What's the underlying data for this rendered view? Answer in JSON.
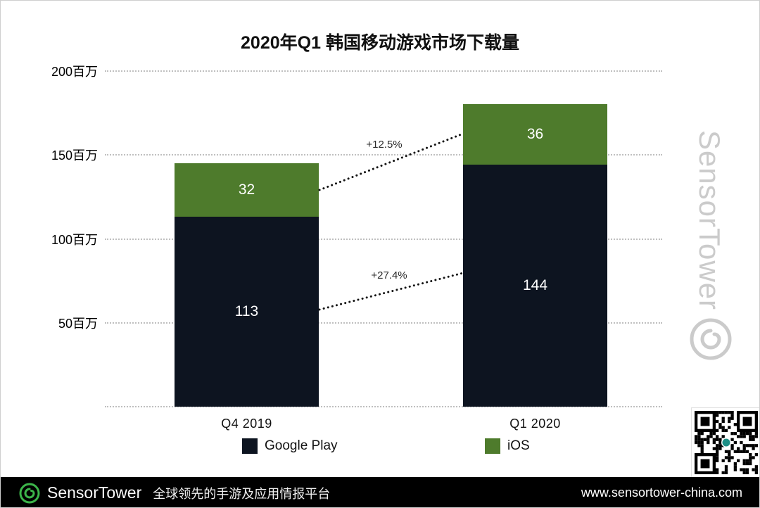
{
  "title": "2020年Q1 韩国移动游戏市场下载量",
  "chart_data": {
    "type": "bar",
    "stacked": true,
    "categories": [
      "Q4  2019",
      "Q1 2020"
    ],
    "series": [
      {
        "name": "Google Play",
        "color": "#0d1420",
        "values": [
          113,
          144
        ]
      },
      {
        "name": "iOS",
        "color": "#4e7b2c",
        "values": [
          32,
          36
        ]
      }
    ],
    "annotations": [
      {
        "label": "+12.5%",
        "applies_to": "iOS"
      },
      {
        "label": "+27.4%",
        "applies_to": "Google Play"
      }
    ],
    "y_ticks": [
      {
        "value": 200,
        "label": "200百万"
      },
      {
        "value": 150,
        "label": "150百万"
      },
      {
        "value": 100,
        "label": "100百万"
      },
      {
        "value": 50,
        "label": "50百万"
      }
    ],
    "ylim": [
      0,
      200
    ],
    "grid": "dotted-horizontal",
    "legend_position": "bottom"
  },
  "watermark": {
    "text": "SensorTower"
  },
  "icons": {
    "watermark_logo": "sensortower-spiral-outline",
    "footer_logo": "sensortower-spiral-green",
    "qr": "qr-code"
  },
  "footer": {
    "brand": "SensorTower",
    "tagline": "全球领先的手游及应用情报平台",
    "url": "www.sensortower-china.com",
    "background": "#000000"
  }
}
